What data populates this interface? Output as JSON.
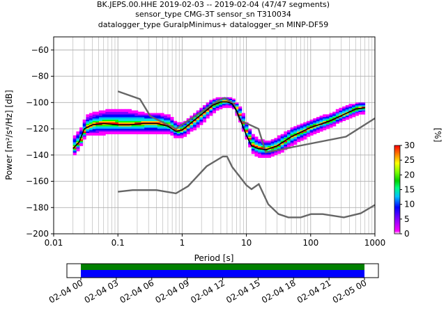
{
  "chart_data": {
    "type": "heatmap",
    "title_lines": [
      "BK.JEPS.00.HHE   2019-02-03 -- 2019-02-04  (47/47 segments)",
      "sensor_type CMG-3T sensor_sn T310034",
      "datalogger_type GuralpMinimus+ datalogger_sn MINP-DF59"
    ],
    "xlabel": "Period [s]",
    "ylabel": "Power [m²/s⁴/Hz] [dB]",
    "xscale": "log",
    "xlim": [
      0.01,
      1000
    ],
    "ylim": [
      -200,
      -50
    ],
    "xticks": [
      0.01,
      0.1,
      1,
      10,
      100,
      1000
    ],
    "xtick_labels": [
      "0.01",
      "0.1",
      "1",
      "10",
      "100",
      "1000"
    ],
    "yticks": [
      -200,
      -180,
      -160,
      -140,
      -120,
      -100,
      -80,
      -60
    ],
    "ytick_labels": [
      "−200",
      "−180",
      "−160",
      "−140",
      "−120",
      "−100",
      "−80",
      "−60"
    ],
    "grid": true,
    "colorbar": {
      "label": "[%]",
      "range": [
        0,
        30
      ],
      "ticks": [
        0,
        5,
        10,
        15,
        20,
        25,
        30
      ],
      "tick_labels": [
        "0",
        "5",
        "10",
        "15",
        "20",
        "25",
        "30"
      ]
    },
    "noise_model_high": {
      "period": [
        0.1,
        0.22,
        0.32,
        0.8,
        3.8,
        4.6,
        6.3,
        7.9,
        15.4,
        20,
        354.8,
        1000
      ],
      "db": [
        -91.5,
        -97.4,
        -110.5,
        -120,
        -98,
        -96.5,
        -101,
        -113.5,
        -120,
        -138,
        -126,
        -112
      ]
    },
    "noise_model_low": {
      "period": [
        0.1,
        0.17,
        0.4,
        0.8,
        1.24,
        2.4,
        4.3,
        5,
        6,
        10,
        12,
        15.6,
        21.9,
        31.6,
        45,
        70,
        101,
        154,
        328,
        600,
        1000
      ],
      "db": [
        -168,
        -166.7,
        -166.7,
        -169.2,
        -163.7,
        -148.6,
        -141.1,
        -141.1,
        -149,
        -163,
        -166,
        -162.1,
        -177.5,
        -185,
        -187.5,
        -187.5,
        -185,
        -185,
        -187.5,
        -184.4,
        -178
      ],
      "note": ""
    },
    "mode_curve": {
      "period": [
        0.02,
        0.025,
        0.03,
        0.04,
        0.06,
        0.1,
        0.15,
        0.25,
        0.4,
        0.6,
        0.8,
        1,
        1.5,
        2,
        3,
        4,
        5,
        6,
        7,
        8,
        10,
        12,
        15,
        20,
        30,
        50,
        100,
        200,
        300,
        500,
        700
      ],
      "db": [
        -135,
        -130,
        -120,
        -117,
        -116,
        -117,
        -117,
        -116,
        -116,
        -118,
        -122,
        -121,
        -114,
        -109,
        -102,
        -99.5,
        -99.5,
        -101,
        -106,
        -113,
        -125,
        -133,
        -135,
        -136,
        -133,
        -126,
        -119,
        -114,
        -110,
        -105,
        -104
      ]
    },
    "histogram": {
      "note": "",
      "period": [
        0.02,
        0.025,
        0.03,
        0.04,
        0.06,
        0.1,
        0.15,
        0.25,
        0.4,
        0.6,
        0.8,
        1,
        1.5,
        2,
        3,
        4,
        5,
        6,
        7,
        8,
        10,
        12,
        15,
        20,
        30,
        50,
        100,
        200,
        300,
        500,
        700
      ],
      "db_min": [
        -140,
        -133,
        -125,
        -125,
        -124,
        -124,
        -124,
        -124,
        -124,
        -124,
        -127,
        -126,
        -120,
        -115,
        -107,
        -104,
        -103,
        -105,
        -111,
        -118,
        -131,
        -139,
        -141,
        -142,
        -139,
        -132,
        -124,
        -118,
        -114,
        -109,
        -108
      ],
      "db_max": [
        -125,
        -120,
        -110,
        -108,
        -106,
        -105,
        -106,
        -108,
        -108,
        -110,
        -116,
        -115,
        -108,
        -103,
        -97,
        -96,
        -96,
        -98,
        -101,
        -106,
        -118,
        -125,
        -128,
        -130,
        -126,
        -119,
        -113,
        -108,
        -104,
        -100,
        -100
      ]
    },
    "timeline": {
      "start_index": 0,
      "tick_labels": [
        "02-04 00",
        "02-04 03",
        "02-04 06",
        "02-04 09",
        "02-04 12",
        "02-04 15",
        "02-04 18",
        "02-04 21",
        "02-05 00"
      ],
      "coverage_fraction": 1.0,
      "bar_colors": [
        "#008000",
        "#0000ff"
      ]
    },
    "colors": {
      "noise_model": "#666666",
      "mode_curve": "#000000",
      "grid": "#b0b0b0"
    }
  }
}
